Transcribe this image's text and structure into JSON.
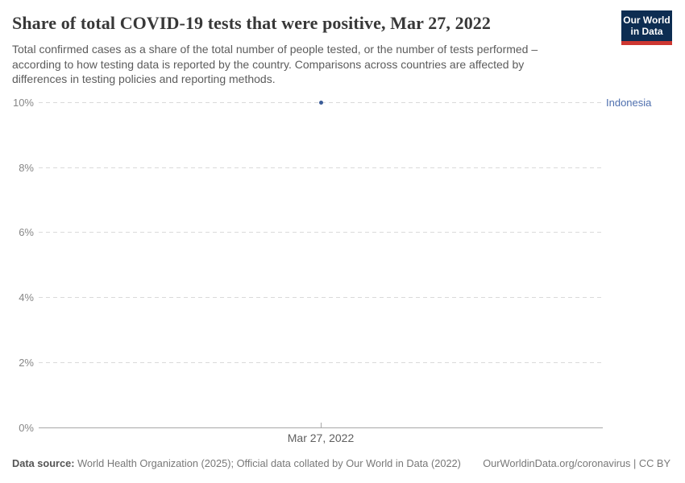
{
  "header": {
    "title": "Share of total COVID-19 tests that were positive, Mar 27, 2022",
    "subtitle": "Total confirmed cases as a share of the total number of people tested, or the number of tests performed – according to how testing data is reported by the country. Comparisons across countries are affected by differences in testing policies and reporting methods.",
    "logo": {
      "line1": "Our World",
      "line2": "in Data"
    }
  },
  "chart_data": {
    "type": "scatter",
    "title": "Share of total COVID-19 tests that were positive, Mar 27, 2022",
    "x": [
      "Mar 27, 2022"
    ],
    "series": [
      {
        "name": "Indonesia",
        "values": [
          10
        ]
      }
    ],
    "ylabel": "",
    "ylim": [
      0,
      10
    ],
    "yticks": [
      {
        "label": "0%",
        "value": 0
      },
      {
        "label": "2%",
        "value": 2
      },
      {
        "label": "4%",
        "value": 4
      },
      {
        "label": "6%",
        "value": 6
      },
      {
        "label": "8%",
        "value": 8
      },
      {
        "label": "10%",
        "value": 10
      }
    ],
    "grid": "horizontal-dashed",
    "legend_position": "right-entity-label",
    "colors": {
      "point": "#3b5c98",
      "entity_label": "#4e6fae",
      "gridline": "#dadada",
      "axis": "#a8a8a8"
    }
  },
  "footer": {
    "source_label": "Data source:",
    "source_text": " World Health Organization (2025); Official data collated by Our World in Data (2022)",
    "rights": "OurWorldinData.org/coronavirus | CC BY"
  },
  "brand": {
    "logo_bg": "#0d2d52",
    "logo_stripe": "#cd3731"
  }
}
